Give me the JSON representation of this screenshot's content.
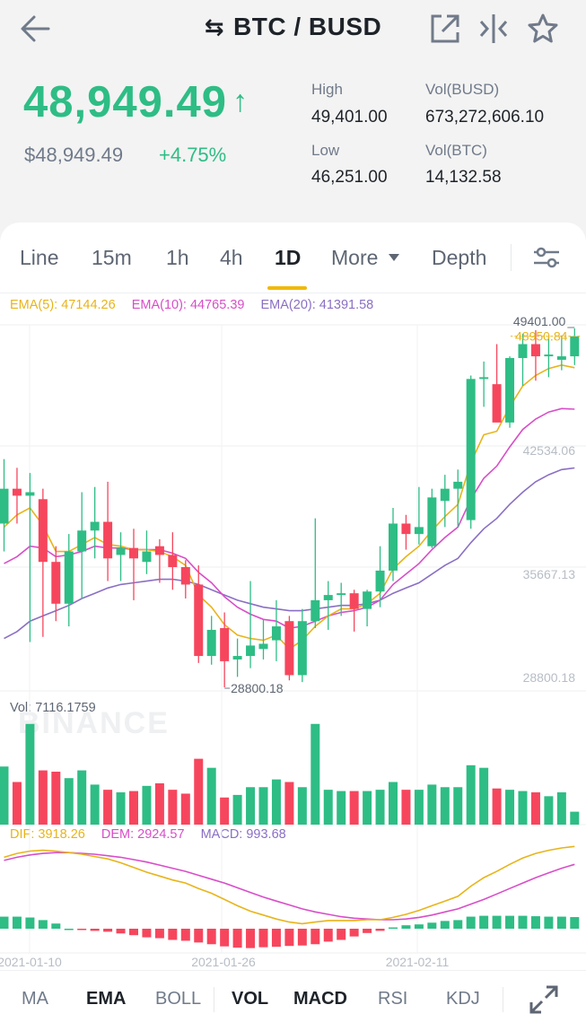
{
  "header": {
    "swap_glyph": "⇆",
    "pair": "BTC / BUSD",
    "icons": [
      "back-arrow-icon",
      "external-link-icon",
      "compare-icon",
      "star-icon"
    ]
  },
  "ticker": {
    "last_price": "48,949.49",
    "direction_glyph": "↑",
    "fiat_price": "$48,949.49",
    "change_pct": "+4.75%",
    "high_label": "High",
    "high": "49,401.00",
    "low_label": "Low",
    "low": "46,251.00",
    "vol_busd_label": "Vol(BUSD)",
    "vol_busd": "673,272,606.10",
    "vol_btc_label": "Vol(BTC)",
    "vol_btc": "14,132.58"
  },
  "timeframes": {
    "line": "Line",
    "m15": "15m",
    "h1": "1h",
    "h4": "4h",
    "d1": "1D",
    "more": "More",
    "depth": "Depth",
    "selected": "1D"
  },
  "ema": {
    "ema5": "EMA(5): 47144.26",
    "ema10": "EMA(10): 44765.39",
    "ema20": "EMA(20): 41391.58"
  },
  "volume_label": "Vol: 7116.1759",
  "macd": {
    "dif": "DIF: 3918.26",
    "dem": "DEM: 2924.57",
    "macd": "MACD: 993.68"
  },
  "chart_data": {
    "type": "candlestick",
    "y_ticks": [
      49401.0,
      42534.06,
      35667.13,
      28800.18
    ],
    "y_tick_labels": [
      "49401.00",
      "42534.06",
      "35667.13",
      "28800.18"
    ],
    "max_label": "49401.00",
    "min_label": "28800.18",
    "current_price_label": "48950.84",
    "x_labels": [
      "2021-01-10",
      "2021-01-26",
      "2021-02-11"
    ],
    "watermark": "BINANCE",
    "candles": [
      {
        "o": 38200,
        "h": 41900,
        "l": 36600,
        "c": 40200
      },
      {
        "o": 40200,
        "h": 41400,
        "l": 38200,
        "c": 39800
      },
      {
        "o": 39800,
        "h": 41100,
        "l": 31400,
        "c": 40000
      },
      {
        "o": 39600,
        "h": 40200,
        "l": 31700,
        "c": 36000
      },
      {
        "o": 36000,
        "h": 36900,
        "l": 32600,
        "c": 33600
      },
      {
        "o": 33600,
        "h": 37600,
        "l": 32300,
        "c": 36600
      },
      {
        "o": 36600,
        "h": 40000,
        "l": 33900,
        "c": 37800
      },
      {
        "o": 37800,
        "h": 40300,
        "l": 36200,
        "c": 38300
      },
      {
        "o": 38300,
        "h": 40600,
        "l": 34900,
        "c": 36200
      },
      {
        "o": 36400,
        "h": 37700,
        "l": 34900,
        "c": 36800
      },
      {
        "o": 36800,
        "h": 37900,
        "l": 33800,
        "c": 36200
      },
      {
        "o": 36000,
        "h": 37800,
        "l": 35300,
        "c": 36600
      },
      {
        "o": 36900,
        "h": 37300,
        "l": 34800,
        "c": 36400
      },
      {
        "o": 36400,
        "h": 37700,
        "l": 34400,
        "c": 35700
      },
      {
        "o": 35700,
        "h": 36100,
        "l": 33900,
        "c": 34700
      },
      {
        "o": 34700,
        "h": 35800,
        "l": 30200,
        "c": 30600
      },
      {
        "o": 30600,
        "h": 32900,
        "l": 30100,
        "c": 32100
      },
      {
        "o": 32200,
        "h": 33100,
        "l": 28800,
        "c": 30300
      },
      {
        "o": 30400,
        "h": 31600,
        "l": 29400,
        "c": 30600
      },
      {
        "o": 30600,
        "h": 34900,
        "l": 29900,
        "c": 31200
      },
      {
        "o": 31000,
        "h": 32700,
        "l": 30400,
        "c": 31300
      },
      {
        "o": 31500,
        "h": 33800,
        "l": 30300,
        "c": 32300
      },
      {
        "o": 32600,
        "h": 32900,
        "l": 29200,
        "c": 29500
      },
      {
        "o": 29500,
        "h": 33300,
        "l": 29100,
        "c": 32600
      },
      {
        "o": 32600,
        "h": 38500,
        "l": 32200,
        "c": 33800
      },
      {
        "o": 33800,
        "h": 34900,
        "l": 32100,
        "c": 34100
      },
      {
        "o": 34100,
        "h": 34800,
        "l": 32900,
        "c": 34200
      },
      {
        "o": 34200,
        "h": 34400,
        "l": 32000,
        "c": 33300
      },
      {
        "o": 33300,
        "h": 34400,
        "l": 32300,
        "c": 34300
      },
      {
        "o": 34300,
        "h": 36900,
        "l": 33400,
        "c": 35500
      },
      {
        "o": 35500,
        "h": 39100,
        "l": 34900,
        "c": 38200
      },
      {
        "o": 38200,
        "h": 38700,
        "l": 36700,
        "c": 37600
      },
      {
        "o": 37600,
        "h": 40300,
        "l": 37000,
        "c": 38000
      },
      {
        "o": 36900,
        "h": 40200,
        "l": 36800,
        "c": 39700
      },
      {
        "o": 39500,
        "h": 41000,
        "l": 38000,
        "c": 40200
      },
      {
        "o": 40200,
        "h": 41300,
        "l": 38000,
        "c": 40600
      },
      {
        "o": 38400,
        "h": 46700,
        "l": 37900,
        "c": 46500
      },
      {
        "o": 46500,
        "h": 47500,
        "l": 44900,
        "c": 46600
      },
      {
        "o": 46200,
        "h": 48500,
        "l": 44200,
        "c": 44000
      },
      {
        "o": 44000,
        "h": 47800,
        "l": 43700,
        "c": 47700
      },
      {
        "o": 47700,
        "h": 49100,
        "l": 46100,
        "c": 48500
      },
      {
        "o": 48500,
        "h": 49300,
        "l": 46400,
        "c": 47800
      },
      {
        "o": 47800,
        "h": 48900,
        "l": 46600,
        "c": 47900
      },
      {
        "o": 47600,
        "h": 49000,
        "l": 47000,
        "c": 47800
      },
      {
        "o": 47800,
        "h": 49401,
        "l": 47300,
        "c": 48949.49
      }
    ],
    "ema5": [
      38000,
      38700,
      39100,
      38100,
      36600,
      36600,
      37000,
      37400,
      37000,
      36900,
      36700,
      36700,
      36600,
      36300,
      35800,
      34100,
      33400,
      32400,
      31800,
      31600,
      31500,
      31800,
      31000,
      31500,
      32300,
      32900,
      33300,
      33300,
      33600,
      34200,
      35600,
      36300,
      36900,
      37800,
      38600,
      39300,
      41700,
      43300,
      43500,
      44900,
      46100,
      46700,
      47100,
      47300,
      47144.26
    ],
    "ema10": [
      35900,
      36300,
      36900,
      36800,
      36300,
      36400,
      36600,
      36900,
      36800,
      36800,
      36700,
      36700,
      36700,
      36500,
      36200,
      35400,
      34800,
      34000,
      33400,
      33000,
      32700,
      32600,
      32200,
      32300,
      32600,
      32900,
      33100,
      33200,
      33400,
      33800,
      34700,
      35300,
      35900,
      36700,
      37400,
      38000,
      39600,
      40800,
      41500,
      42600,
      43600,
      44200,
      44600,
      44800,
      44765.39
    ],
    "ema20": [
      31600,
      32000,
      32600,
      32900,
      33200,
      33500,
      33900,
      34200,
      34500,
      34700,
      34800,
      34900,
      35000,
      35000,
      34900,
      34700,
      34400,
      34100,
      33800,
      33600,
      33400,
      33300,
      33200,
      33200,
      33300,
      33400,
      33500,
      33500,
      33600,
      33800,
      34200,
      34500,
      34800,
      35300,
      35800,
      36200,
      37100,
      37900,
      38500,
      39300,
      40000,
      40600,
      41000,
      41300,
      41391.58
    ],
    "volume": [
      0.45,
      0.33,
      0.78,
      0.42,
      0.41,
      0.36,
      0.42,
      0.31,
      0.27,
      0.25,
      0.26,
      0.3,
      0.32,
      0.27,
      0.24,
      0.51,
      0.44,
      0.21,
      0.23,
      0.29,
      0.29,
      0.35,
      0.33,
      0.29,
      0.78,
      0.27,
      0.26,
      0.26,
      0.26,
      0.27,
      0.33,
      0.27,
      0.27,
      0.31,
      0.29,
      0.29,
      0.46,
      0.44,
      0.28,
      0.27,
      0.26,
      0.25,
      0.22,
      0.25,
      0.1
    ],
    "dif": [
      0.88,
      0.93,
      0.96,
      0.97,
      0.96,
      0.94,
      0.92,
      0.89,
      0.86,
      0.81,
      0.75,
      0.69,
      0.64,
      0.59,
      0.55,
      0.48,
      0.42,
      0.34,
      0.26,
      0.19,
      0.14,
      0.09,
      0.05,
      0.03,
      0.05,
      0.07,
      0.07,
      0.07,
      0.08,
      0.08,
      0.11,
      0.15,
      0.2,
      0.26,
      0.32,
      0.38,
      0.51,
      0.62,
      0.7,
      0.79,
      0.87,
      0.93,
      0.97,
      1.0,
      1.02
    ],
    "dem": [
      0.84,
      0.88,
      0.91,
      0.93,
      0.94,
      0.94,
      0.93,
      0.92,
      0.9,
      0.88,
      0.85,
      0.82,
      0.78,
      0.74,
      0.7,
      0.65,
      0.6,
      0.55,
      0.49,
      0.43,
      0.37,
      0.32,
      0.27,
      0.22,
      0.18,
      0.15,
      0.12,
      0.1,
      0.09,
      0.08,
      0.08,
      0.09,
      0.11,
      0.14,
      0.18,
      0.22,
      0.28,
      0.34,
      0.41,
      0.48,
      0.55,
      0.62,
      0.68,
      0.74,
      0.79
    ],
    "macd_hist": [
      0.28,
      0.28,
      0.26,
      0.2,
      0.12,
      0.0,
      -0.02,
      -0.05,
      -0.07,
      -0.11,
      -0.15,
      -0.2,
      -0.22,
      -0.26,
      -0.28,
      -0.32,
      -0.36,
      -0.41,
      -0.44,
      -0.45,
      -0.43,
      -0.42,
      -0.4,
      -0.39,
      -0.36,
      -0.3,
      -0.26,
      -0.18,
      -0.1,
      -0.05,
      0.03,
      0.08,
      0.1,
      0.14,
      0.18,
      0.2,
      0.28,
      0.3,
      0.3,
      0.3,
      0.3,
      0.29,
      0.28,
      0.28,
      0.27
    ]
  },
  "bottom_tabs": {
    "ma": "MA",
    "ema": "EMA",
    "boll": "BOLL",
    "vol": "VOL",
    "macd": "MACD",
    "rsi": "RSI",
    "kdj": "KDJ"
  },
  "colors": {
    "up": "#2ebd85",
    "down": "#f6465d",
    "ema5": "#e8b41a",
    "ema10": "#d84ec8",
    "ema20": "#8a6fc4",
    "accent": "#f0b90b"
  }
}
